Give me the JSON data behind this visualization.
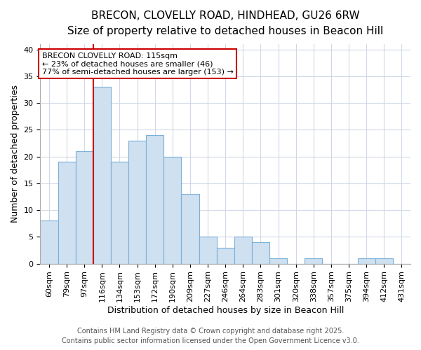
{
  "title1": "BRECON, CLOVELLY ROAD, HINDHEAD, GU26 6RW",
  "title2": "Size of property relative to detached houses in Beacon Hill",
  "xlabel": "Distribution of detached houses by size in Beacon Hill",
  "ylabel": "Number of detached properties",
  "categories": [
    "60sqm",
    "79sqm",
    "97sqm",
    "116sqm",
    "134sqm",
    "153sqm",
    "172sqm",
    "190sqm",
    "209sqm",
    "227sqm",
    "246sqm",
    "264sqm",
    "283sqm",
    "301sqm",
    "320sqm",
    "338sqm",
    "357sqm",
    "375sqm",
    "394sqm",
    "412sqm",
    "431sqm"
  ],
  "values": [
    8,
    19,
    21,
    33,
    19,
    23,
    24,
    20,
    13,
    5,
    3,
    5,
    4,
    1,
    0,
    1,
    0,
    0,
    1,
    1,
    0
  ],
  "bar_color": "#cfe0f0",
  "bar_edge_color": "#7ab0d8",
  "red_line_x": 2.5,
  "annotation_text": "BRECON CLOVELLY ROAD: 115sqm\n← 23% of detached houses are smaller (46)\n77% of semi-detached houses are larger (153) →",
  "annotation_box_facecolor": "#ffffff",
  "annotation_border_color": "#cc0000",
  "ylim": [
    0,
    41
  ],
  "yticks": [
    0,
    5,
    10,
    15,
    20,
    25,
    30,
    35,
    40
  ],
  "plot_bg_color": "#ffffff",
  "fig_bg_color": "#ffffff",
  "grid_color": "#d0d8e8",
  "footer1": "Contains HM Land Registry data © Crown copyright and database right 2025.",
  "footer2": "Contains public sector information licensed under the Open Government Licence v3.0.",
  "title_fontsize": 11,
  "subtitle_fontsize": 9.5,
  "axis_label_fontsize": 9,
  "tick_fontsize": 8,
  "annotation_fontsize": 8,
  "footer_fontsize": 7
}
